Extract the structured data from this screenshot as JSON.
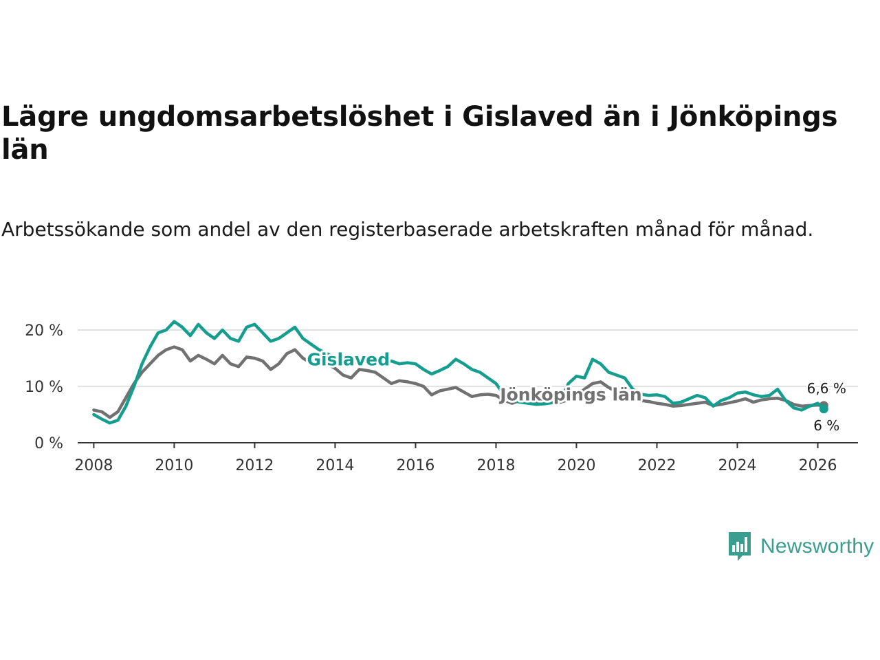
{
  "header": {
    "title": "Lägre ungdomsarbetslöshet i Gislaved än i Jönköpings län",
    "subtitle": "Arbetssökande som andel av den registerbaserade arbetskraften månad för månad."
  },
  "brand": {
    "name": "Newsworthy",
    "icon": "newsworthy-logo-icon",
    "color": "#3a9e8f"
  },
  "chart_data": {
    "type": "line",
    "title": "Lägre ungdomsarbetslöshet i Gislaved än i Jönköpings län",
    "subtitle": "Arbetssökande som andel av den registerbaserade arbetskraften månad för månad.",
    "xlabel": "",
    "ylabel": "",
    "xlim": [
      2007.6,
      2027.0
    ],
    "ylim": [
      0,
      20
    ],
    "y_ticks": [
      {
        "value": 0,
        "label": "0 %"
      },
      {
        "value": 10,
        "label": "10 %"
      },
      {
        "value": 20,
        "label": "20 %"
      }
    ],
    "x_ticks": [
      {
        "value": 2008,
        "label": "2008"
      },
      {
        "value": 2010,
        "label": "2010"
      },
      {
        "value": 2012,
        "label": "2012"
      },
      {
        "value": 2014,
        "label": "2014"
      },
      {
        "value": 2016,
        "label": "2016"
      },
      {
        "value": 2018,
        "label": "2018"
      },
      {
        "value": 2020,
        "label": "2020"
      },
      {
        "value": 2022,
        "label": "2022"
      },
      {
        "value": 2024,
        "label": "2024"
      },
      {
        "value": 2026,
        "label": "2026"
      }
    ],
    "grid": true,
    "series": [
      {
        "name": "Jönköpings län",
        "color": "#717171",
        "label": {
          "text": "Jönköpings län",
          "x": 2018.1,
          "y": 8.6
        },
        "end_label": "6,6 %",
        "x": [
          2008.0,
          2008.2,
          2008.4,
          2008.6,
          2008.8,
          2009.0,
          2009.2,
          2009.4,
          2009.6,
          2009.8,
          2010.0,
          2010.2,
          2010.4,
          2010.6,
          2010.8,
          2011.0,
          2011.2,
          2011.4,
          2011.6,
          2011.8,
          2012.0,
          2012.2,
          2012.4,
          2012.6,
          2012.8,
          2013.0,
          2013.2,
          2013.4,
          2013.6,
          2013.8,
          2014.0,
          2014.2,
          2014.4,
          2014.6,
          2014.8,
          2015.0,
          2015.2,
          2015.4,
          2015.6,
          2015.8,
          2016.0,
          2016.2,
          2016.4,
          2016.6,
          2016.8,
          2017.0,
          2017.2,
          2017.4,
          2017.6,
          2017.8,
          2018.0,
          2018.2,
          2018.4,
          2018.6,
          2018.8,
          2019.0,
          2019.2,
          2019.4,
          2019.6,
          2019.8,
          2020.0,
          2020.2,
          2020.4,
          2020.6,
          2020.8,
          2021.0,
          2021.2,
          2021.4,
          2021.6,
          2021.8,
          2022.0,
          2022.2,
          2022.4,
          2022.6,
          2022.8,
          2023.0,
          2023.2,
          2023.4,
          2023.6,
          2023.8,
          2024.0,
          2024.2,
          2024.4,
          2024.6,
          2024.8,
          2025.0,
          2025.2,
          2025.4,
          2025.6,
          2025.8,
          2026.0,
          2026.15
        ],
        "values": [
          5.8,
          5.5,
          4.5,
          5.5,
          8.0,
          10.5,
          12.5,
          14.0,
          15.5,
          16.5,
          17.0,
          16.5,
          14.5,
          15.5,
          14.8,
          14.0,
          15.5,
          14.0,
          13.5,
          15.2,
          15.0,
          14.5,
          13.0,
          14.0,
          15.8,
          16.5,
          15.0,
          14.2,
          14.5,
          14.0,
          13.2,
          12.0,
          11.5,
          13.0,
          12.8,
          12.5,
          11.5,
          10.5,
          11.0,
          10.8,
          10.5,
          10.0,
          8.5,
          9.2,
          9.5,
          9.8,
          9.0,
          8.2,
          8.5,
          8.6,
          8.4,
          7.5,
          7.0,
          7.5,
          7.2,
          7.0,
          7.3,
          7.1,
          7.2,
          7.6,
          8.4,
          9.5,
          10.5,
          10.8,
          9.8,
          9.0,
          8.5,
          8.0,
          7.5,
          7.3,
          7.0,
          6.8,
          6.5,
          6.6,
          6.8,
          7.0,
          7.2,
          6.6,
          6.8,
          7.1,
          7.4,
          7.8,
          7.2,
          7.6,
          7.8,
          7.9,
          7.5,
          6.8,
          6.5,
          6.6,
          6.7,
          6.6
        ]
      },
      {
        "name": "Gislaved",
        "color": "#159e8f",
        "label": {
          "text": "Gislaved",
          "x": 2013.3,
          "y": 14.8
        },
        "end_label": "6 %",
        "x": [
          2008.0,
          2008.2,
          2008.4,
          2008.6,
          2008.8,
          2009.0,
          2009.2,
          2009.4,
          2009.6,
          2009.8,
          2010.0,
          2010.2,
          2010.4,
          2010.6,
          2010.8,
          2011.0,
          2011.2,
          2011.4,
          2011.6,
          2011.8,
          2012.0,
          2012.2,
          2012.4,
          2012.6,
          2012.8,
          2013.0,
          2013.2,
          2013.4,
          2013.6,
          2013.8,
          2014.0,
          2014.2,
          2014.4,
          2014.6,
          2014.8,
          2015.0,
          2015.2,
          2015.4,
          2015.6,
          2015.8,
          2016.0,
          2016.2,
          2016.4,
          2016.6,
          2016.8,
          2017.0,
          2017.2,
          2017.4,
          2017.6,
          2017.8,
          2018.0,
          2018.2,
          2018.4,
          2018.6,
          2018.8,
          2019.0,
          2019.2,
          2019.4,
          2019.6,
          2019.8,
          2020.0,
          2020.2,
          2020.4,
          2020.6,
          2020.8,
          2021.0,
          2021.2,
          2021.4,
          2021.6,
          2021.8,
          2022.0,
          2022.2,
          2022.4,
          2022.6,
          2022.8,
          2023.0,
          2023.2,
          2023.4,
          2023.6,
          2023.8,
          2024.0,
          2024.2,
          2024.4,
          2024.6,
          2024.8,
          2025.0,
          2025.2,
          2025.4,
          2025.6,
          2025.8,
          2026.0,
          2026.15
        ],
        "values": [
          5.0,
          4.2,
          3.5,
          4.0,
          6.5,
          10.0,
          14.0,
          17.0,
          19.5,
          20.0,
          21.5,
          20.5,
          19.0,
          21.0,
          19.5,
          18.5,
          20.0,
          18.5,
          18.0,
          20.5,
          21.0,
          19.5,
          18.0,
          18.5,
          19.5,
          20.5,
          18.5,
          17.5,
          16.5,
          15.8,
          15.0,
          14.8,
          14.0,
          14.5,
          15.0,
          14.8,
          14.2,
          14.5,
          14.0,
          14.2,
          14.0,
          13.0,
          12.2,
          12.8,
          13.5,
          14.8,
          14.0,
          13.0,
          12.5,
          11.5,
          10.5,
          8.5,
          7.5,
          7.2,
          7.0,
          6.8,
          6.9,
          7.1,
          7.5,
          10.5,
          11.8,
          11.5,
          14.8,
          14.0,
          12.5,
          12.0,
          11.5,
          9.5,
          8.6,
          8.4,
          8.5,
          8.2,
          7.0,
          7.2,
          7.8,
          8.4,
          8.0,
          6.5,
          7.5,
          8.0,
          8.8,
          9.0,
          8.5,
          8.2,
          8.4,
          9.5,
          7.5,
          6.2,
          5.8,
          6.5,
          7.0,
          6.0
        ]
      }
    ]
  }
}
